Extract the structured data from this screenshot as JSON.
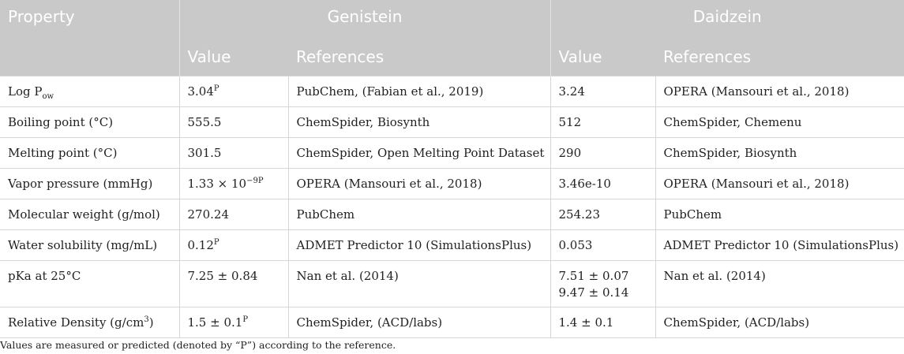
{
  "header": {
    "property": "Property",
    "genistein": "Genistein",
    "daidzein": "Daidzein",
    "value": "Value",
    "references": "References"
  },
  "rows": [
    {
      "property": "Log P",
      "property_sub": "ow",
      "gen_value": "3.04",
      "gen_sup": "P",
      "gen_ref": "PubChem, (Fabian et al., 2019)",
      "dai_value": "3.24",
      "dai_ref": "OPERA (Mansouri et al., 2018)"
    },
    {
      "property": "Boiling point (°C)",
      "gen_value": "555.5",
      "gen_ref": "ChemSpider, Biosynth",
      "dai_value": "512",
      "dai_ref": "ChemSpider, Chemenu"
    },
    {
      "property": "Melting point (°C)",
      "gen_value": "301.5",
      "gen_ref": "ChemSpider, Open Melting Point Dataset",
      "dai_value": "290",
      "dai_ref": "ChemSpider, Biosynth"
    },
    {
      "property": "Vapor pressure (mmHg)",
      "gen_value": "1.33 × 10",
      "gen_sup": "−9P",
      "gen_ref": "OPERA (Mansouri et al., 2018)",
      "dai_value": "3.46e-10",
      "dai_ref": "OPERA (Mansouri et al., 2018)"
    },
    {
      "property": "Molecular weight (g/mol)",
      "gen_value": "270.24",
      "gen_ref": "PubChem",
      "dai_value": "254.23",
      "dai_ref": "PubChem"
    },
    {
      "property": "Water solubility (mg/mL)",
      "gen_value": "0.12",
      "gen_sup": "P",
      "gen_ref": "ADMET Predictor 10 (SimulationsPlus)",
      "dai_value": "0.053",
      "dai_ref": "ADMET Predictor 10 (SimulationsPlus)"
    },
    {
      "property": "pKa at 25°C",
      "gen_value": "7.25 ± 0.84",
      "gen_ref": "Nan et al. (2014)",
      "dai_value": "7.51 ± 0.07",
      "dai_value2": "9.47 ± 0.14",
      "dai_ref": "Nan et al. (2014)"
    },
    {
      "property": "Relative Density (g/cm",
      "property_sup": "3",
      "property_end": ")",
      "gen_value": "1.5 ± 0.1",
      "gen_sup": "P",
      "gen_ref": "ChemSpider, (ACD/labs)",
      "dai_value": "1.4 ± 0.1",
      "dai_ref": "ChemSpider, (ACD/labs)"
    }
  ],
  "footnote": "Values are measured or predicted (denoted by “P”) according to the reference."
}
